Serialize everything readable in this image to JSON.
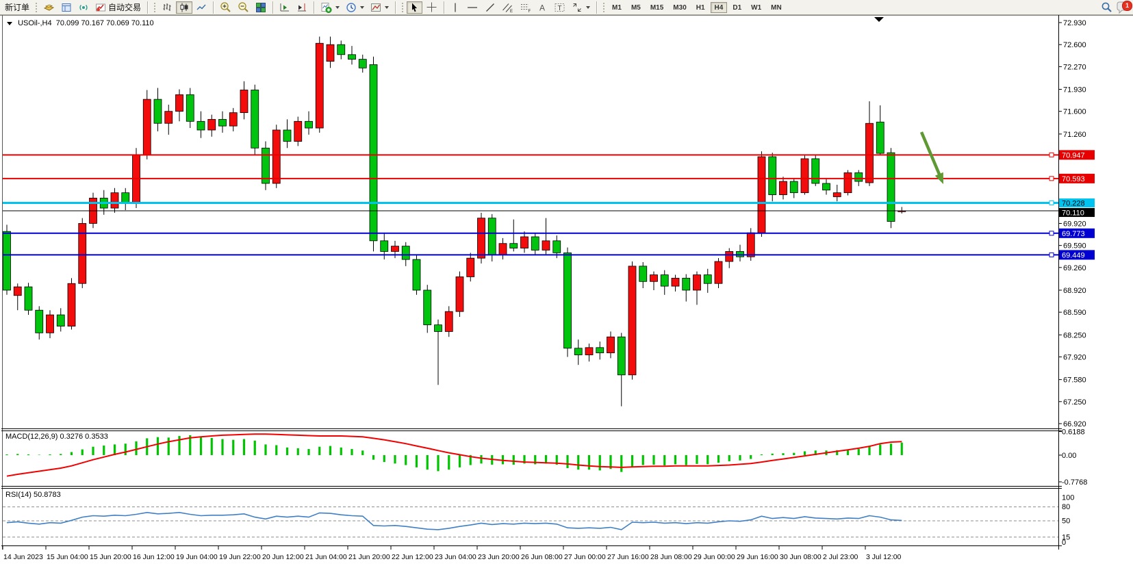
{
  "toolbar": {
    "new_order": "新订单",
    "auto_trading": "自动交易",
    "timeframes": [
      "M1",
      "M5",
      "M15",
      "M30",
      "H1",
      "H4",
      "D1",
      "W1",
      "MN"
    ],
    "active_timeframe": "H4",
    "notification_count": "1"
  },
  "chart": {
    "title_symbol": "USOil-,H4",
    "title_ohlc": "70.099 70.167 70.069 70.110"
  },
  "chart_data": {
    "type": "candlestick",
    "symbol": "USOil-",
    "timeframe": "H4",
    "last_quote": {
      "open": 70.099,
      "high": 70.167,
      "low": 70.069,
      "close": 70.11
    },
    "price_axis": {
      "visible_ticks": [
        "72.930",
        "72.600",
        "72.270",
        "71.930",
        "71.600",
        "71.260",
        "69.920",
        "69.590",
        "69.260",
        "68.920",
        "68.590",
        "68.250",
        "67.920",
        "67.580",
        "67.250",
        "66.920"
      ]
    },
    "hlines": [
      {
        "price": 70.947,
        "label": "70.947",
        "color": "#e80000",
        "width": 2,
        "text": "#ffffff"
      },
      {
        "price": 70.593,
        "label": "70.593",
        "color": "#e80000",
        "width": 2,
        "text": "#ffffff"
      },
      {
        "price": 70.228,
        "label": "70.228",
        "color": "#00c3f0",
        "width": 3,
        "text": "#000000"
      },
      {
        "price": 70.11,
        "label": "70.110",
        "color": "#000000",
        "width": 1,
        "text": "#ffffff"
      },
      {
        "price": 69.773,
        "label": "69.773",
        "color": "#0000d0",
        "width": 2,
        "text": "#ffffff"
      },
      {
        "price": 69.449,
        "label": "69.449",
        "color": "#0000d0",
        "width": 2,
        "text": "#ffffff"
      }
    ],
    "time_labels": [
      "14 Jun 2023",
      "15 Jun 04:00",
      "15 Jun 20:00",
      "16 Jun 12:00",
      "19 Jun 04:00",
      "19 Jun 22:00",
      "20 Jun 12:00",
      "21 Jun 04:00",
      "21 Jun 20:00",
      "22 Jun 12:00",
      "23 Jun 04:00",
      "23 Jun 20:00",
      "26 Jun 08:00",
      "27 Jun 00:00",
      "27 Jun 16:00",
      "28 Jun 08:00",
      "29 Jun 00:00",
      "29 Jun 16:00",
      "30 Jun 08:00",
      "2 Jul 23:00",
      "3 Jul 12:00"
    ],
    "candles": [
      [
        69.8,
        69.9,
        68.85,
        68.92
      ],
      [
        68.84,
        69.02,
        68.62,
        68.97
      ],
      [
        68.97,
        69.03,
        68.55,
        68.62
      ],
      [
        68.62,
        68.68,
        68.18,
        68.28
      ],
      [
        68.28,
        68.62,
        68.2,
        68.55
      ],
      [
        68.55,
        68.65,
        68.3,
        68.38
      ],
      [
        68.38,
        69.1,
        68.33,
        69.02
      ],
      [
        69.02,
        70.0,
        68.95,
        69.92
      ],
      [
        69.92,
        70.38,
        69.85,
        70.3
      ],
      [
        70.3,
        70.42,
        70.05,
        70.15
      ],
      [
        70.15,
        70.45,
        70.08,
        70.38
      ],
      [
        70.38,
        70.45,
        70.12,
        70.22
      ],
      [
        70.22,
        71.05,
        70.15,
        70.95
      ],
      [
        70.95,
        71.92,
        70.88,
        71.78
      ],
      [
        71.78,
        71.95,
        71.3,
        71.42
      ],
      [
        71.42,
        71.7,
        71.25,
        71.6
      ],
      [
        71.6,
        71.93,
        71.45,
        71.85
      ],
      [
        71.85,
        71.95,
        71.35,
        71.45
      ],
      [
        71.45,
        71.6,
        71.2,
        71.32
      ],
      [
        71.32,
        71.55,
        71.22,
        71.48
      ],
      [
        71.48,
        71.6,
        71.28,
        71.38
      ],
      [
        71.38,
        71.65,
        71.3,
        71.58
      ],
      [
        71.58,
        72.05,
        71.48,
        71.92
      ],
      [
        71.92,
        72.0,
        70.95,
        71.05
      ],
      [
        71.05,
        71.15,
        70.42,
        70.52
      ],
      [
        70.52,
        71.4,
        70.45,
        71.32
      ],
      [
        71.32,
        71.48,
        71.05,
        71.15
      ],
      [
        71.15,
        71.52,
        71.08,
        71.45
      ],
      [
        71.45,
        71.6,
        71.25,
        71.35
      ],
      [
        71.35,
        72.72,
        71.28,
        72.62
      ],
      [
        72.35,
        72.72,
        72.25,
        72.6
      ],
      [
        72.6,
        72.66,
        72.38,
        72.45
      ],
      [
        72.45,
        72.58,
        72.3,
        72.38
      ],
      [
        72.38,
        72.45,
        72.18,
        72.25
      ],
      [
        72.3,
        72.42,
        69.5,
        69.66
      ],
      [
        69.66,
        69.78,
        69.38,
        69.5
      ],
      [
        69.5,
        69.66,
        69.4,
        69.58
      ],
      [
        69.58,
        69.64,
        69.28,
        69.38
      ],
      [
        69.38,
        69.45,
        68.85,
        68.92
      ],
      [
        68.92,
        69.0,
        68.28,
        68.4
      ],
      [
        68.4,
        68.48,
        67.5,
        68.3
      ],
      [
        68.3,
        68.68,
        68.22,
        68.6
      ],
      [
        68.6,
        69.2,
        68.52,
        69.12
      ],
      [
        69.12,
        69.48,
        69.05,
        69.4
      ],
      [
        69.4,
        70.08,
        69.32,
        70.0
      ],
      [
        70.0,
        70.06,
        69.35,
        69.45
      ],
      [
        69.45,
        69.7,
        69.38,
        69.62
      ],
      [
        69.62,
        69.98,
        69.5,
        69.55
      ],
      [
        69.55,
        69.8,
        69.48,
        69.72
      ],
      [
        69.72,
        69.78,
        69.45,
        69.52
      ],
      [
        69.52,
        70.0,
        69.46,
        69.66
      ],
      [
        69.66,
        69.74,
        69.4,
        69.48
      ],
      [
        69.48,
        69.56,
        67.92,
        68.05
      ],
      [
        68.05,
        68.18,
        67.8,
        67.95
      ],
      [
        67.95,
        68.12,
        67.85,
        68.06
      ],
      [
        68.06,
        68.15,
        67.88,
        67.98
      ],
      [
        67.98,
        68.3,
        67.9,
        68.22
      ],
      [
        68.22,
        68.28,
        67.18,
        67.65
      ],
      [
        67.65,
        69.35,
        67.58,
        69.28
      ],
      [
        69.28,
        69.34,
        68.95,
        69.05
      ],
      [
        69.05,
        69.2,
        68.92,
        69.15
      ],
      [
        69.15,
        69.22,
        68.85,
        68.98
      ],
      [
        68.98,
        69.15,
        68.9,
        69.1
      ],
      [
        69.1,
        69.16,
        68.75,
        68.92
      ],
      [
        68.92,
        69.2,
        68.7,
        69.15
      ],
      [
        69.15,
        69.24,
        68.88,
        69.02
      ],
      [
        69.02,
        69.4,
        68.95,
        69.35
      ],
      [
        69.35,
        69.55,
        69.25,
        69.5
      ],
      [
        69.5,
        69.6,
        69.35,
        69.42
      ],
      [
        69.42,
        69.85,
        69.36,
        69.78
      ],
      [
        69.78,
        71.0,
        69.72,
        70.92
      ],
      [
        70.92,
        70.98,
        70.25,
        70.35
      ],
      [
        70.35,
        70.62,
        70.28,
        70.55
      ],
      [
        70.55,
        70.6,
        70.3,
        70.38
      ],
      [
        70.38,
        70.95,
        70.35,
        70.89
      ],
      [
        70.89,
        70.94,
        70.48,
        70.52
      ],
      [
        70.52,
        70.6,
        70.35,
        70.42
      ],
      [
        70.32,
        70.5,
        70.25,
        70.38
      ],
      [
        70.38,
        70.72,
        70.34,
        70.68
      ],
      [
        70.68,
        70.72,
        70.48,
        70.55
      ],
      [
        70.53,
        71.75,
        70.48,
        71.42
      ],
      [
        71.44,
        71.69,
        70.95,
        70.97
      ],
      [
        70.98,
        71.05,
        69.85,
        69.95
      ],
      [
        70.099,
        70.167,
        70.069,
        70.11
      ]
    ],
    "macd": {
      "label": "MACD(12,26,9)",
      "values": "0.3276 0.3533",
      "axis_ticks": [
        "0.6188",
        "0.00",
        "-0.7768"
      ],
      "histogram": [
        0.02,
        0.03,
        0.02,
        0.01,
        0.02,
        0.03,
        0.08,
        0.15,
        0.22,
        0.25,
        0.28,
        0.3,
        0.36,
        0.44,
        0.47,
        0.46,
        0.5,
        0.52,
        0.48,
        0.45,
        0.42,
        0.4,
        0.42,
        0.38,
        0.28,
        0.26,
        0.2,
        0.18,
        0.16,
        0.22,
        0.24,
        0.2,
        0.16,
        0.12,
        -0.12,
        -0.18,
        -0.22,
        -0.26,
        -0.32,
        -0.38,
        -0.42,
        -0.38,
        -0.32,
        -0.26,
        -0.22,
        -0.25,
        -0.24,
        -0.25,
        -0.22,
        -0.24,
        -0.22,
        -0.25,
        -0.34,
        -0.38,
        -0.38,
        -0.4,
        -0.36,
        -0.44,
        -0.3,
        -0.26,
        -0.25,
        -0.27,
        -0.24,
        -0.26,
        -0.23,
        -0.24,
        -0.2,
        -0.16,
        -0.14,
        -0.1,
        0.02,
        0.04,
        0.05,
        0.06,
        0.1,
        0.12,
        0.12,
        0.13,
        0.15,
        0.16,
        0.24,
        0.28,
        0.3,
        0.3276
      ],
      "signal": [
        -0.55,
        -0.5,
        -0.46,
        -0.42,
        -0.38,
        -0.34,
        -0.28,
        -0.2,
        -0.12,
        -0.05,
        0.02,
        0.08,
        0.15,
        0.22,
        0.29,
        0.35,
        0.4,
        0.45,
        0.48,
        0.5,
        0.52,
        0.53,
        0.54,
        0.55,
        0.55,
        0.54,
        0.53,
        0.52,
        0.51,
        0.5,
        0.5,
        0.5,
        0.49,
        0.48,
        0.44,
        0.4,
        0.35,
        0.3,
        0.24,
        0.18,
        0.12,
        0.06,
        0.01,
        -0.04,
        -0.08,
        -0.11,
        -0.14,
        -0.16,
        -0.18,
        -0.19,
        -0.2,
        -0.21,
        -0.23,
        -0.26,
        -0.28,
        -0.3,
        -0.31,
        -0.32,
        -0.31,
        -0.3,
        -0.29,
        -0.29,
        -0.28,
        -0.28,
        -0.28,
        -0.28,
        -0.27,
        -0.26,
        -0.24,
        -0.22,
        -0.18,
        -0.14,
        -0.1,
        -0.06,
        -0.02,
        0.02,
        0.06,
        0.1,
        0.14,
        0.18,
        0.23,
        0.3,
        0.34,
        0.3533
      ]
    },
    "rsi": {
      "label": "RSI(14)",
      "value": "50.8783",
      "levels": [
        80,
        50,
        15
      ],
      "axis_ticks": [
        "100",
        "80",
        "50",
        "15",
        "0"
      ],
      "values": [
        46,
        48,
        45,
        43,
        46,
        45,
        51,
        58,
        61,
        60,
        62,
        61,
        64,
        68,
        65,
        66,
        68,
        64,
        61,
        62,
        62,
        63,
        65,
        58,
        54,
        60,
        58,
        60,
        58,
        67,
        66,
        63,
        61,
        60,
        40,
        39,
        40,
        38,
        35,
        32,
        31,
        34,
        38,
        41,
        45,
        42,
        44,
        43,
        45,
        44,
        45,
        43,
        35,
        34,
        35,
        34,
        36,
        31,
        47,
        46,
        47,
        45,
        46,
        44,
        46,
        45,
        48,
        50,
        49,
        52,
        60,
        55,
        57,
        55,
        59,
        56,
        55,
        54,
        56,
        55,
        61,
        58,
        52,
        50.88
      ]
    },
    "annotations": {
      "arrow_color": "#5f9933"
    },
    "colors": {
      "up": "#f20c0c",
      "down": "#00c40e",
      "wick": "#000000",
      "macd_hist": "#00c400",
      "macd_signal": "#f20000",
      "rsi_line": "#3f7fc4"
    }
  }
}
